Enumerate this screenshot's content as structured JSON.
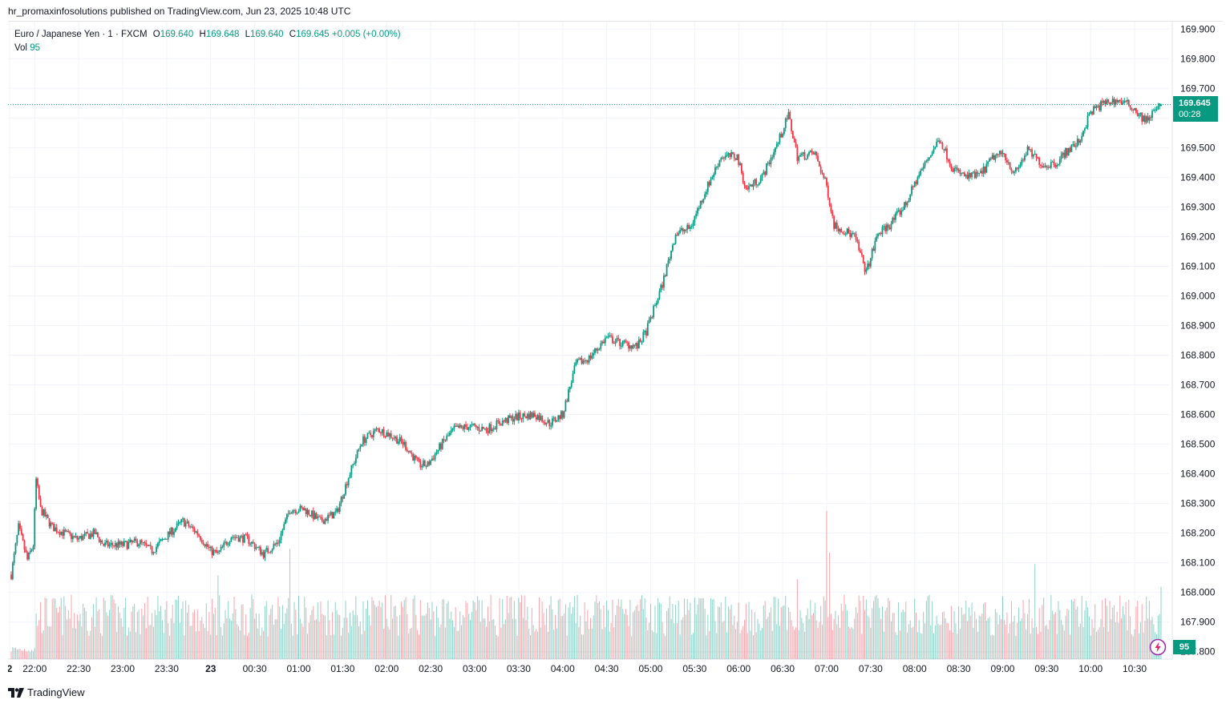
{
  "publisher_line": "hr_promaxinfosolutions published on TradingView.com, Jun 23, 2025 10:48 UTC",
  "legend": {
    "symbol": "Euro / Japanese Yen · 1 · FXCM",
    "o_label": "O",
    "o_value": "169.640",
    "h_label": "H",
    "h_value": "169.648",
    "l_label": "L",
    "l_value": "169.640",
    "c_label": "C",
    "c_value": "169.645",
    "change": "+0.005 (+0.00%)",
    "vol_label": "Vol",
    "vol_value": "95"
  },
  "last_price": {
    "price": "169.645",
    "countdown": "00:28"
  },
  "volume_badge": "95",
  "brand": "TradingView",
  "colors": {
    "up": "#089981",
    "down": "#f23645",
    "grid": "#f0f3fa",
    "text": "#131722"
  },
  "chart_data": {
    "type": "candlestick",
    "symbol": "EURJPY",
    "timeframe": "1",
    "yticks": [
      "169.900",
      "169.800",
      "169.700",
      "169.600",
      "169.500",
      "169.400",
      "169.300",
      "169.200",
      "169.100",
      "169.000",
      "168.900",
      "168.800",
      "168.700",
      "168.600",
      "168.500",
      "168.400",
      "168.300",
      "168.200",
      "168.100",
      "168.000",
      "167.900",
      "167.800"
    ],
    "ylim": [
      167.775,
      169.925
    ],
    "xticks": [
      "2",
      "22:00",
      "22:30",
      "23:00",
      "23:30",
      "23",
      "00:30",
      "01:00",
      "01:30",
      "02:00",
      "02:30",
      "03:00",
      "03:30",
      "04:00",
      "04:30",
      "05:00",
      "05:30",
      "06:00",
      "06:30",
      "07:00",
      "07:30",
      "08:00",
      "08:30",
      "09:00",
      "09:30",
      "10:00",
      "10:30"
    ],
    "x_start": "21:44",
    "x_end": "10:48",
    "price_path": [
      [
        "21:44",
        168.06
      ],
      [
        "21:49",
        168.22
      ],
      [
        "21:55",
        168.11
      ],
      [
        "21:59",
        168.16
      ],
      [
        "22:01",
        168.38
      ],
      [
        "22:04",
        168.28
      ],
      [
        "22:12",
        168.22
      ],
      [
        "22:20",
        168.2
      ],
      [
        "22:29",
        168.18
      ],
      [
        "22:41",
        168.2
      ],
      [
        "22:47",
        168.16
      ],
      [
        "23:00",
        168.16
      ],
      [
        "23:11",
        168.17
      ],
      [
        "23:20",
        168.14
      ],
      [
        "23:30",
        168.19
      ],
      [
        "23:41",
        168.24
      ],
      [
        "23:51",
        168.2
      ],
      [
        "00:00",
        168.14
      ],
      [
        "00:05",
        168.13
      ],
      [
        "00:14",
        168.19
      ],
      [
        "00:25",
        168.18
      ],
      [
        "00:36",
        168.13
      ],
      [
        "00:46",
        168.17
      ],
      [
        "00:54",
        168.28
      ],
      [
        "01:04",
        168.28
      ],
      [
        "01:15",
        168.24
      ],
      [
        "01:26",
        168.27
      ],
      [
        "01:34",
        168.39
      ],
      [
        "01:43",
        168.51
      ],
      [
        "01:54",
        168.55
      ],
      [
        "02:03",
        168.53
      ],
      [
        "02:12",
        168.5
      ],
      [
        "02:22",
        168.43
      ],
      [
        "02:28",
        168.43
      ],
      [
        "02:39",
        168.51
      ],
      [
        "02:46",
        168.55
      ],
      [
        "02:56",
        168.56
      ],
      [
        "03:08",
        168.55
      ],
      [
        "03:16",
        168.57
      ],
      [
        "03:27",
        168.59
      ],
      [
        "03:41",
        168.6
      ],
      [
        "03:51",
        168.57
      ],
      [
        "04:00",
        168.6
      ],
      [
        "04:09",
        168.77
      ],
      [
        "04:18",
        168.79
      ],
      [
        "04:30",
        168.86
      ],
      [
        "04:40",
        168.84
      ],
      [
        "04:51",
        168.83
      ],
      [
        "04:57",
        168.88
      ],
      [
        "05:08",
        169.04
      ],
      [
        "05:17",
        169.21
      ],
      [
        "05:27",
        169.23
      ],
      [
        "05:37",
        169.35
      ],
      [
        "05:48",
        169.47
      ],
      [
        "05:59",
        169.47
      ],
      [
        "06:05",
        169.36
      ],
      [
        "06:16",
        169.4
      ],
      [
        "06:27",
        169.52
      ],
      [
        "06:34",
        169.61
      ],
      [
        "06:40",
        169.47
      ],
      [
        "06:52",
        169.48
      ],
      [
        "07:00",
        169.37
      ],
      [
        "07:05",
        169.24
      ],
      [
        "07:19",
        169.2
      ],
      [
        "07:27",
        169.08
      ],
      [
        "07:35",
        169.21
      ],
      [
        "07:43",
        169.24
      ],
      [
        "07:54",
        169.31
      ],
      [
        "08:02",
        169.4
      ],
      [
        "08:11",
        169.48
      ],
      [
        "08:17",
        169.53
      ],
      [
        "08:26",
        169.43
      ],
      [
        "08:35",
        169.4
      ],
      [
        "08:45",
        169.41
      ],
      [
        "08:54",
        169.47
      ],
      [
        "09:01",
        169.48
      ],
      [
        "09:08",
        169.41
      ],
      [
        "09:17",
        169.49
      ],
      [
        "09:28",
        169.44
      ],
      [
        "09:37",
        169.45
      ],
      [
        "09:42",
        169.48
      ],
      [
        "09:52",
        169.52
      ],
      [
        "10:00",
        169.62
      ],
      [
        "10:09",
        169.65
      ],
      [
        "10:18",
        169.66
      ],
      [
        "10:28",
        169.64
      ],
      [
        "10:37",
        169.59
      ],
      [
        "10:48",
        169.645
      ]
    ],
    "volume_range": [
      0,
      200
    ],
    "volume_spikes": [
      [
        "22:01",
        60
      ],
      [
        "00:05",
        110
      ],
      [
        "00:54",
        145
      ],
      [
        "05:41",
        80
      ],
      [
        "06:40",
        105
      ],
      [
        "07:00",
        195
      ],
      [
        "07:02",
        140
      ],
      [
        "07:35",
        80
      ],
      [
        "09:22",
        125
      ],
      [
        "10:24",
        75
      ]
    ],
    "last_bar": {
      "open": 169.64,
      "high": 169.648,
      "low": 169.64,
      "close": 169.645,
      "change": 0.005,
      "change_pct": 0.0,
      "volume": 95
    },
    "grid": true
  }
}
